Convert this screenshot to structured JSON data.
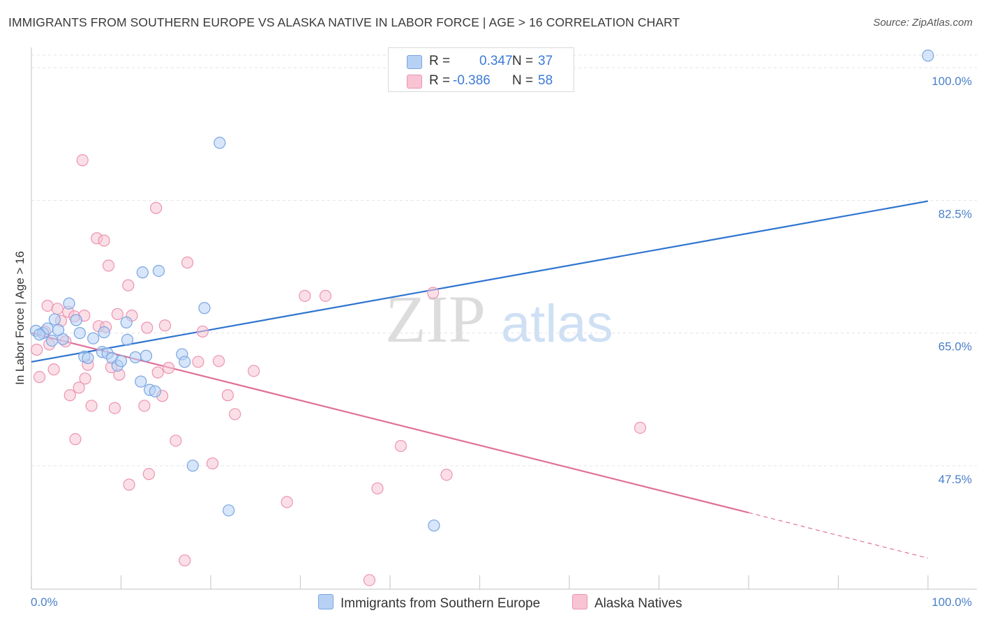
{
  "header": {
    "title": "IMMIGRANTS FROM SOUTHERN EUROPE VS ALASKA NATIVE IN LABOR FORCE | AGE > 16 CORRELATION CHART",
    "source": "Source: ZipAtlas.com"
  },
  "legend": {
    "series1": {
      "r_label": "R =",
      "r_value": "0.347",
      "n_label": "N =",
      "n_value": "37"
    },
    "series2": {
      "r_label": "R =",
      "r_value": "-0.386",
      "n_label": "N =",
      "n_value": "58"
    }
  },
  "watermark": {
    "zip": "ZIP",
    "atlas": "atlas"
  },
  "colors": {
    "blue_fill": "#b7d1f5",
    "blue_stroke": "#7aa5e0",
    "blue_line": "#2e74d0",
    "pink_fill": "#f8c4d4",
    "pink_stroke": "#ec93b0",
    "pink_line": "#e07098"
  },
  "chart_data": {
    "type": "scatter",
    "title": "IMMIGRANTS FROM SOUTHERN EUROPE VS ALASKA NATIVE IN LABOR FORCE | AGE > 16 CORRELATION CHART",
    "xlabel": "",
    "ylabel": "In Labor Force | Age > 16",
    "xlim": [
      0,
      100
    ],
    "ylim": [
      31.2,
      102.5
    ],
    "x_tick_labels": [
      "0.0%",
      "100.0%"
    ],
    "y_ticks": [
      47.5,
      65.0,
      82.5,
      100.0
    ],
    "y_tick_labels": [
      "47.5%",
      "65.0%",
      "82.5%",
      "100.0%"
    ],
    "legend_position": "top-center",
    "series": [
      {
        "name": "Immigrants from Southern Europe",
        "color": "blue",
        "points": [
          [
            0.5,
            65.3
          ],
          [
            1.3,
            65.0
          ],
          [
            1.8,
            65.6
          ],
          [
            2.3,
            64.0
          ],
          [
            2.6,
            66.8
          ],
          [
            3.5,
            64.2
          ],
          [
            4.2,
            68.9
          ],
          [
            5.0,
            66.7
          ],
          [
            5.4,
            65.0
          ],
          [
            5.9,
            61.9
          ],
          [
            6.3,
            61.7
          ],
          [
            6.9,
            64.3
          ],
          [
            7.9,
            62.5
          ],
          [
            8.1,
            65.1
          ],
          [
            8.5,
            62.3
          ],
          [
            9.0,
            61.7
          ],
          [
            9.6,
            60.7
          ],
          [
            10.0,
            61.3
          ],
          [
            10.6,
            66.4
          ],
          [
            10.7,
            64.1
          ],
          [
            11.6,
            61.8
          ],
          [
            12.2,
            58.6
          ],
          [
            12.4,
            73.0
          ],
          [
            12.8,
            62.0
          ],
          [
            13.2,
            57.5
          ],
          [
            13.8,
            57.3
          ],
          [
            14.2,
            73.2
          ],
          [
            16.8,
            62.2
          ],
          [
            17.1,
            61.2
          ],
          [
            18.0,
            47.5
          ],
          [
            19.3,
            68.3
          ],
          [
            21.0,
            90.1
          ],
          [
            22.0,
            41.6
          ],
          [
            44.9,
            39.6
          ],
          [
            100.0,
            101.6
          ],
          [
            0.9,
            64.8
          ],
          [
            3.0,
            65.4
          ]
        ],
        "trendline": {
          "x": [
            0,
            100
          ],
          "y": [
            61.2,
            82.4
          ]
        }
      },
      {
        "name": "Alaska Natives",
        "color": "pink",
        "points": [
          [
            0.6,
            62.8
          ],
          [
            0.9,
            59.2
          ],
          [
            1.5,
            65.2
          ],
          [
            1.8,
            68.6
          ],
          [
            2.5,
            60.2
          ],
          [
            2.9,
            68.2
          ],
          [
            3.3,
            66.6
          ],
          [
            3.8,
            63.9
          ],
          [
            4.1,
            67.8
          ],
          [
            4.3,
            56.8
          ],
          [
            4.8,
            67.2
          ],
          [
            4.9,
            51.0
          ],
          [
            5.3,
            57.8
          ],
          [
            5.7,
            87.8
          ],
          [
            5.9,
            67.3
          ],
          [
            6.3,
            60.8
          ],
          [
            6.7,
            55.4
          ],
          [
            7.3,
            77.5
          ],
          [
            7.5,
            65.9
          ],
          [
            8.1,
            77.2
          ],
          [
            8.3,
            65.8
          ],
          [
            8.6,
            73.9
          ],
          [
            8.9,
            60.5
          ],
          [
            9.3,
            55.1
          ],
          [
            9.6,
            67.5
          ],
          [
            10.8,
            71.3
          ],
          [
            10.9,
            45.0
          ],
          [
            11.2,
            67.3
          ],
          [
            12.6,
            55.4
          ],
          [
            12.9,
            65.7
          ],
          [
            13.1,
            46.4
          ],
          [
            13.9,
            81.5
          ],
          [
            14.1,
            59.8
          ],
          [
            14.6,
            56.7
          ],
          [
            14.9,
            66.0
          ],
          [
            15.3,
            60.4
          ],
          [
            16.1,
            50.8
          ],
          [
            17.1,
            35.0
          ],
          [
            17.4,
            74.3
          ],
          [
            18.6,
            61.2
          ],
          [
            19.1,
            65.2
          ],
          [
            20.2,
            47.8
          ],
          [
            20.9,
            61.3
          ],
          [
            21.9,
            56.8
          ],
          [
            22.7,
            54.3
          ],
          [
            24.8,
            60.0
          ],
          [
            28.5,
            42.7
          ],
          [
            30.5,
            69.9
          ],
          [
            32.8,
            69.9
          ],
          [
            37.7,
            32.4
          ],
          [
            38.6,
            44.5
          ],
          [
            41.2,
            50.1
          ],
          [
            44.8,
            70.3
          ],
          [
            46.3,
            46.3
          ],
          [
            67.9,
            52.5
          ],
          [
            2.0,
            63.5
          ],
          [
            6.0,
            59.0
          ],
          [
            9.8,
            59.5
          ]
        ],
        "trendline": {
          "x": [
            0,
            80
          ],
          "y": [
            65.0,
            41.3
          ]
        },
        "trendline_dashed": {
          "x": [
            80,
            100
          ],
          "y": [
            41.3,
            35.3
          ]
        }
      }
    ]
  }
}
